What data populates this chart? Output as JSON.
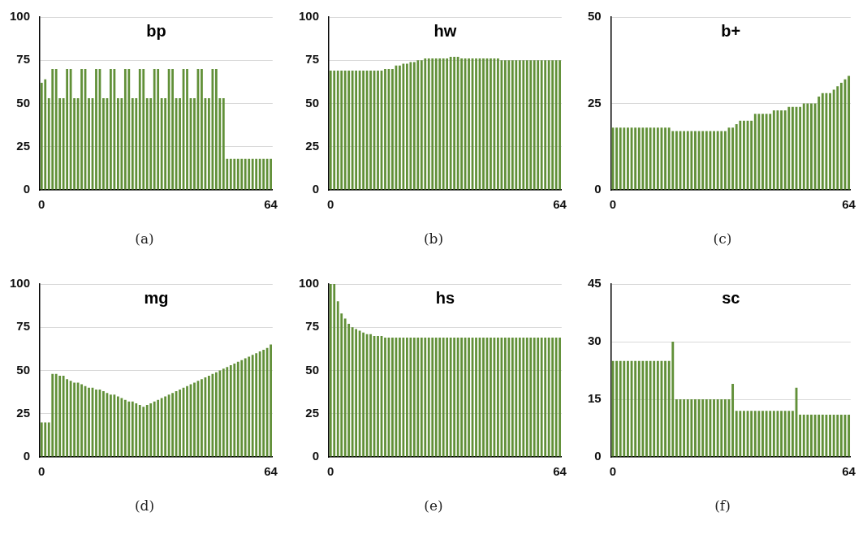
{
  "chart_data": [
    {
      "type": "bar",
      "title": "bp",
      "annotations": [
        "(a)"
      ],
      "color": "#619038",
      "ylim": [
        0,
        100
      ],
      "yticks": [
        0,
        25,
        50,
        75,
        100
      ],
      "grid": "y",
      "categories": [
        "0",
        null,
        null,
        null,
        null,
        null,
        null,
        null,
        null,
        null,
        null,
        null,
        null,
        null,
        null,
        null,
        null,
        null,
        null,
        null,
        null,
        null,
        null,
        null,
        null,
        null,
        null,
        null,
        null,
        null,
        null,
        null,
        null,
        null,
        null,
        null,
        null,
        null,
        null,
        null,
        null,
        null,
        null,
        null,
        null,
        null,
        null,
        null,
        null,
        null,
        null,
        null,
        null,
        null,
        null,
        null,
        null,
        null,
        null,
        null,
        null,
        null,
        null,
        "64"
      ],
      "values": [
        62,
        64,
        53,
        70,
        70,
        53,
        53,
        70,
        70,
        53,
        53,
        70,
        70,
        53,
        53,
        70,
        70,
        53,
        53,
        70,
        70,
        53,
        53,
        70,
        70,
        53,
        53,
        70,
        70,
        53,
        53,
        70,
        70,
        53,
        53,
        70,
        70,
        53,
        53,
        70,
        70,
        53,
        53,
        70,
        70,
        53,
        53,
        70,
        70,
        53,
        53,
        18,
        18,
        18,
        18,
        18,
        18,
        18,
        18,
        18,
        18,
        18,
        18,
        18
      ]
    },
    {
      "type": "bar",
      "title": "hw",
      "annotations": [
        "(b)"
      ],
      "color": "#619038",
      "ylim": [
        0,
        100
      ],
      "yticks": [
        0,
        25,
        50,
        75,
        100
      ],
      "grid": "y",
      "categories": [
        "0",
        null,
        null,
        null,
        null,
        null,
        null,
        null,
        null,
        null,
        null,
        null,
        null,
        null,
        null,
        null,
        null,
        null,
        null,
        null,
        null,
        null,
        null,
        null,
        null,
        null,
        null,
        null,
        null,
        null,
        null,
        null,
        null,
        null,
        null,
        null,
        null,
        null,
        null,
        null,
        null,
        null,
        null,
        null,
        null,
        null,
        null,
        null,
        null,
        null,
        null,
        null,
        null,
        null,
        null,
        null,
        null,
        null,
        null,
        null,
        null,
        null,
        null,
        "64"
      ],
      "values": [
        69,
        69,
        69,
        69,
        69,
        69,
        69,
        69,
        69,
        69,
        69,
        69,
        69,
        69,
        69,
        70,
        70,
        70,
        72,
        72,
        73,
        73,
        74,
        74,
        75,
        75,
        76,
        76,
        76,
        76,
        76,
        76,
        76,
        77,
        77,
        77,
        76,
        76,
        76,
        76,
        76,
        76,
        76,
        76,
        76,
        76,
        76,
        75,
        75,
        75,
        75,
        75,
        75,
        75,
        75,
        75,
        75,
        75,
        75,
        75,
        75,
        75,
        75,
        75
      ]
    },
    {
      "type": "bar",
      "title": "b+",
      "annotations": [
        "(c)"
      ],
      "color": "#619038",
      "ylim": [
        0,
        50
      ],
      "yticks": [
        0,
        25,
        50
      ],
      "grid": "y",
      "categories": [
        "0",
        null,
        null,
        null,
        null,
        null,
        null,
        null,
        null,
        null,
        null,
        null,
        null,
        null,
        null,
        null,
        null,
        null,
        null,
        null,
        null,
        null,
        null,
        null,
        null,
        null,
        null,
        null,
        null,
        null,
        null,
        null,
        null,
        null,
        null,
        null,
        null,
        null,
        null,
        null,
        null,
        null,
        null,
        null,
        null,
        null,
        null,
        null,
        null,
        null,
        null,
        null,
        null,
        null,
        null,
        null,
        null,
        null,
        null,
        null,
        null,
        null,
        null,
        "64"
      ],
      "values": [
        18,
        18,
        18,
        18,
        18,
        18,
        18,
        18,
        18,
        18,
        18,
        18,
        18,
        18,
        18,
        18,
        17,
        17,
        17,
        17,
        17,
        17,
        17,
        17,
        17,
        17,
        17,
        17,
        17,
        17,
        17,
        18,
        18,
        19,
        20,
        20,
        20,
        20,
        22,
        22,
        22,
        22,
        22,
        23,
        23,
        23,
        23,
        24,
        24,
        24,
        24,
        25,
        25,
        25,
        25,
        27,
        28,
        28,
        28,
        29,
        30,
        31,
        32,
        33
      ]
    },
    {
      "type": "bar",
      "title": "mg",
      "annotations": [
        "(d)"
      ],
      "color": "#619038",
      "ylim": [
        0,
        100
      ],
      "yticks": [
        0,
        25,
        50,
        75,
        100
      ],
      "grid": "y",
      "categories": [
        "0",
        null,
        null,
        null,
        null,
        null,
        null,
        null,
        null,
        null,
        null,
        null,
        null,
        null,
        null,
        null,
        null,
        null,
        null,
        null,
        null,
        null,
        null,
        null,
        null,
        null,
        null,
        null,
        null,
        null,
        null,
        null,
        null,
        null,
        null,
        null,
        null,
        null,
        null,
        null,
        null,
        null,
        null,
        null,
        null,
        null,
        null,
        null,
        null,
        null,
        null,
        null,
        null,
        null,
        null,
        null,
        null,
        null,
        null,
        null,
        null,
        null,
        null,
        "64"
      ],
      "values": [
        20,
        20,
        20,
        48,
        48,
        47,
        47,
        45,
        44,
        43,
        43,
        42,
        41,
        40,
        40,
        39,
        39,
        38,
        37,
        36,
        36,
        35,
        34,
        33,
        32,
        32,
        31,
        30,
        29,
        30,
        31,
        32,
        33,
        34,
        35,
        36,
        37,
        38,
        39,
        40,
        41,
        42,
        43,
        44,
        45,
        46,
        47,
        48,
        49,
        50,
        51,
        52,
        53,
        54,
        55,
        56,
        57,
        58,
        59,
        60,
        61,
        62,
        63,
        65
      ]
    },
    {
      "type": "bar",
      "title": "hs",
      "annotations": [
        "(e)"
      ],
      "color": "#619038",
      "ylim": [
        0,
        100
      ],
      "yticks": [
        0,
        25,
        50,
        75,
        100
      ],
      "grid": "y",
      "categories": [
        "0",
        null,
        null,
        null,
        null,
        null,
        null,
        null,
        null,
        null,
        null,
        null,
        null,
        null,
        null,
        null,
        null,
        null,
        null,
        null,
        null,
        null,
        null,
        null,
        null,
        null,
        null,
        null,
        null,
        null,
        null,
        null,
        null,
        null,
        null,
        null,
        null,
        null,
        null,
        null,
        null,
        null,
        null,
        null,
        null,
        null,
        null,
        null,
        null,
        null,
        null,
        null,
        null,
        null,
        null,
        null,
        null,
        null,
        null,
        null,
        null,
        null,
        null,
        "64"
      ],
      "values": [
        100,
        100,
        90,
        83,
        80,
        77,
        75,
        74,
        73,
        72,
        71,
        71,
        70,
        70,
        70,
        69,
        69,
        69,
        69,
        69,
        69,
        69,
        69,
        69,
        69,
        69,
        69,
        69,
        69,
        69,
        69,
        69,
        69,
        69,
        69,
        69,
        69,
        69,
        69,
        69,
        69,
        69,
        69,
        69,
        69,
        69,
        69,
        69,
        69,
        69,
        69,
        69,
        69,
        69,
        69,
        69,
        69,
        69,
        69,
        69,
        69,
        69,
        69,
        69
      ]
    },
    {
      "type": "bar",
      "title": "sc",
      "annotations": [
        "(f)"
      ],
      "color": "#619038",
      "ylim": [
        0,
        45
      ],
      "yticks": [
        0,
        15,
        30,
        45
      ],
      "grid": "y",
      "categories": [
        "0",
        null,
        null,
        null,
        null,
        null,
        null,
        null,
        null,
        null,
        null,
        null,
        null,
        null,
        null,
        null,
        null,
        null,
        null,
        null,
        null,
        null,
        null,
        null,
        null,
        null,
        null,
        null,
        null,
        null,
        null,
        null,
        null,
        null,
        null,
        null,
        null,
        null,
        null,
        null,
        null,
        null,
        null,
        null,
        null,
        null,
        null,
        null,
        null,
        null,
        null,
        null,
        null,
        null,
        null,
        null,
        null,
        null,
        null,
        null,
        null,
        null,
        null,
        "64"
      ],
      "values": [
        25,
        25,
        25,
        25,
        25,
        25,
        25,
        25,
        25,
        25,
        25,
        25,
        25,
        25,
        25,
        25,
        30,
        15,
        15,
        15,
        15,
        15,
        15,
        15,
        15,
        15,
        15,
        15,
        15,
        15,
        15,
        15,
        19,
        12,
        12,
        12,
        12,
        12,
        12,
        12,
        12,
        12,
        12,
        12,
        12,
        12,
        12,
        12,
        12,
        18,
        11,
        11,
        11,
        11,
        11,
        11,
        11,
        11,
        11,
        11,
        11,
        11,
        11,
        11
      ]
    }
  ]
}
